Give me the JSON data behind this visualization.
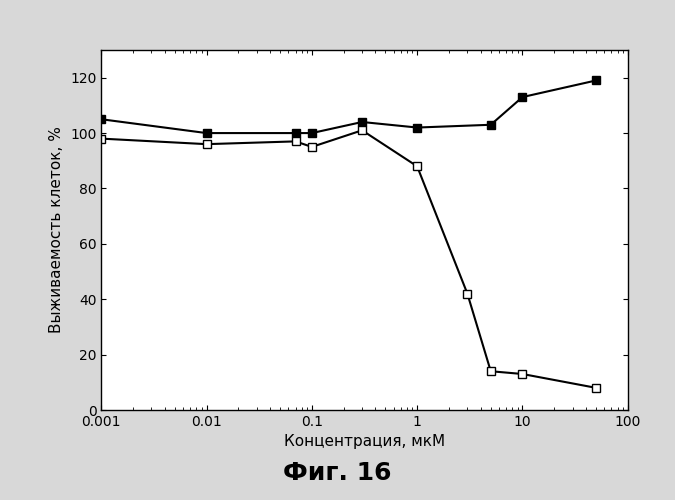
{
  "title": "Фиг. 16",
  "xlabel": "Концентрация, мкМ",
  "ylabel": "Выживаемость клеток, %",
  "ylim": [
    0,
    130
  ],
  "yticks": [
    0,
    20,
    40,
    60,
    80,
    100,
    120
  ],
  "xlim_log": [
    -3,
    2
  ],
  "series_filled": {
    "x": [
      0.001,
      0.01,
      0.07,
      0.1,
      0.3,
      1.0,
      5.0,
      10.0,
      50.0
    ],
    "y": [
      105,
      100,
      100,
      100,
      104,
      102,
      103,
      113,
      119
    ]
  },
  "series_open": {
    "x": [
      0.001,
      0.01,
      0.07,
      0.1,
      0.3,
      1.0,
      3.0,
      5.0,
      10.0,
      50.0
    ],
    "y": [
      98,
      96,
      97,
      95,
      101,
      88,
      42,
      14,
      13,
      8
    ]
  },
  "figure_bg": "#d8d8d8",
  "plot_bg": "#ffffff",
  "border_color": "#000000",
  "line_color": "#000000",
  "markersize": 6,
  "linewidth": 1.5,
  "title_fontsize": 18,
  "axis_label_fontsize": 11,
  "tick_fontsize": 10
}
